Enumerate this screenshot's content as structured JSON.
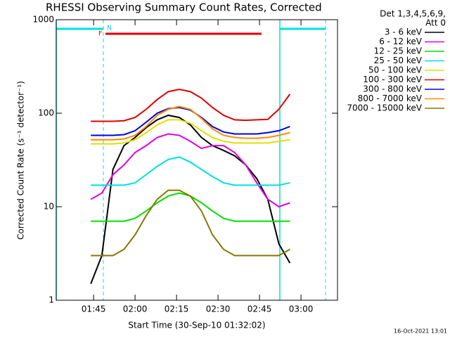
{
  "chart_data": {
    "type": "line",
    "title": "RHESSI Observing Summary Count Rates, Corrected",
    "xlabel": "Start Time (30-Sep-10 01:32:02)",
    "ylabel": "Corrected Count Rate (s⁻¹ detector⁻¹)",
    "legend_title": [
      "Det 1,3,4,5,6,9,",
      "Att 0"
    ],
    "annotations": [
      "F",
      "N"
    ],
    "footer": "16-Oct-2021 13:01",
    "log_y": true,
    "legend": "right",
    "xlim": [
      "01:31:30",
      "03:13:12"
    ],
    "xticks": [
      "01:45",
      "02:00",
      "02:15",
      "02:30",
      "02:45",
      "03:00"
    ],
    "ylim": [
      1,
      1000
    ],
    "yticks": [
      1,
      10,
      100,
      1000
    ],
    "x": [
      "01:44",
      "01:48",
      "01:52",
      "01:56",
      "02:00",
      "02:04",
      "02:08",
      "02:12",
      "02:16",
      "02:20",
      "02:24",
      "02:28",
      "02:32",
      "02:36",
      "02:40",
      "02:44",
      "02:48",
      "02:52",
      "02:56"
    ],
    "series": [
      {
        "name": "3 - 6 keV",
        "color": "#000000",
        "values": [
          1.5,
          3,
          25,
          45,
          55,
          70,
          85,
          95,
          90,
          75,
          55,
          45,
          40,
          35,
          28,
          20,
          12,
          4,
          2.5
        ]
      },
      {
        "name": "6 - 12 keV",
        "color": "#e000e0",
        "values": [
          12,
          14,
          22,
          28,
          38,
          45,
          55,
          60,
          58,
          50,
          42,
          45,
          45,
          38,
          28,
          18,
          12,
          10,
          11
        ]
      },
      {
        "name": "12 - 25 keV",
        "color": "#00e000",
        "values": [
          7,
          7,
          7,
          7,
          7.5,
          9,
          11,
          13,
          14,
          13,
          11,
          9,
          7.5,
          7,
          7,
          7,
          7,
          7,
          7
        ]
      },
      {
        "name": "25 - 50 keV",
        "color": "#00e0e0",
        "values": [
          17,
          17,
          17,
          17,
          18,
          22,
          27,
          32,
          34,
          30,
          25,
          21,
          18,
          17,
          17,
          17,
          17,
          17,
          18
        ]
      },
      {
        "name": "50 - 100 keV",
        "color": "#e0e000",
        "values": [
          47,
          47,
          47,
          48,
          52,
          62,
          75,
          85,
          85,
          78,
          65,
          55,
          50,
          48,
          48,
          48,
          48,
          50,
          52
        ]
      },
      {
        "name": "100 - 300 keV",
        "color": "#e00000",
        "values": [
          82,
          82,
          82,
          83,
          90,
          110,
          140,
          170,
          180,
          170,
          145,
          115,
          95,
          85,
          84,
          85,
          86,
          110,
          160
        ]
      },
      {
        "name": "300 - 800 keV",
        "color": "#0000e0",
        "values": [
          58,
          58,
          58,
          59,
          65,
          80,
          100,
          112,
          115,
          108,
          90,
          72,
          63,
          60,
          60,
          60,
          62,
          65,
          72
        ]
      },
      {
        "name": "800 - 7000 keV",
        "color": "#ff8c00",
        "values": [
          52,
          52,
          52,
          53,
          58,
          72,
          95,
          110,
          118,
          110,
          88,
          68,
          58,
          55,
          54,
          54,
          55,
          58,
          62
        ]
      },
      {
        "name": "7000 - 15000 keV",
        "color": "#8b7500",
        "values": [
          3,
          3,
          3,
          3.5,
          5,
          8,
          12,
          15,
          15,
          13,
          9,
          5,
          3.5,
          3,
          3,
          3,
          3,
          3,
          3.5
        ]
      }
    ]
  }
}
